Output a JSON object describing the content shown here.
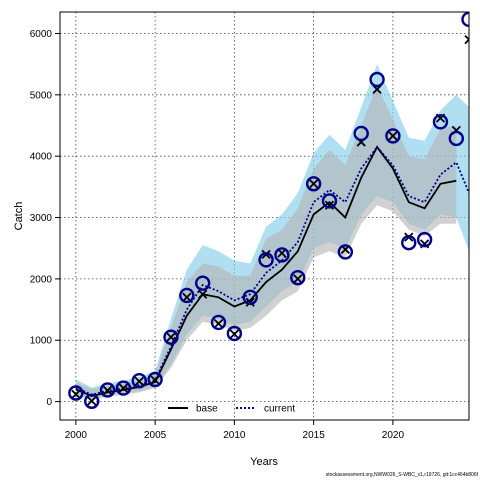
{
  "chart_data": {
    "type": "line",
    "title": "",
    "xlabel": "Years",
    "ylabel": "Catch",
    "xlim": [
      1999,
      2024.8
    ],
    "ylim": [
      -300,
      6350
    ],
    "xticks": [
      2000,
      2005,
      2010,
      2015,
      2020
    ],
    "yticks": [
      0,
      1000,
      2000,
      3000,
      4000,
      5000,
      6000
    ],
    "grid": true,
    "legend_position": "bottom-center",
    "series": [
      {
        "name": "base",
        "color": "#000000",
        "line_style": "solid",
        "band_color": "#b3b3b3",
        "x": [
          2000,
          2001,
          2002,
          2003,
          2004,
          2005,
          2006,
          2007,
          2008,
          2009,
          2010,
          2011,
          2012,
          2013,
          2014,
          2015,
          2016,
          2017,
          2018,
          2019,
          2020,
          2021,
          2022,
          2023,
          2024
        ],
        "values": [
          200,
          90,
          150,
          190,
          240,
          320,
          850,
          1400,
          1750,
          1700,
          1550,
          1650,
          1950,
          2150,
          2450,
          3050,
          3250,
          3000,
          3650,
          4150,
          3800,
          3250,
          3150,
          3550,
          3600
        ],
        "lower": [
          100,
          30,
          80,
          110,
          150,
          220,
          550,
          1000,
          1300,
          1250,
          1150,
          1200,
          1400,
          1650,
          1800,
          2350,
          2450,
          2350,
          2900,
          3200,
          3100,
          2800,
          2700,
          2900,
          2900
        ],
        "upper": [
          320,
          200,
          260,
          300,
          360,
          450,
          1200,
          1950,
          2250,
          2200,
          2050,
          2050,
          2650,
          2800,
          3150,
          3800,
          4100,
          3850,
          4500,
          5150,
          4600,
          4000,
          3950,
          4450,
          4500
        ],
        "points": {
          "x": [
            2000,
            2001,
            2002,
            2003,
            2004,
            2005,
            2006,
            2007,
            2008,
            2009,
            2010,
            2011,
            2012,
            2013,
            2014,
            2015,
            2016,
            2017,
            2018,
            2019,
            2020,
            2021,
            2022,
            2023,
            2024,
            2024.8
          ],
          "values": [
            120,
            10,
            180,
            220,
            330,
            350,
            1050,
            1700,
            1750,
            1270,
            1100,
            1620,
            2400,
            2420,
            2000,
            3550,
            3200,
            2480,
            4230,
            5090,
            4330,
            2680,
            2570,
            4620,
            4420,
            5900
          ]
        }
      },
      {
        "name": "current",
        "color": "#00008b",
        "line_style": "dotted",
        "band_color": "#87ceeb",
        "x": [
          2000,
          2001,
          2002,
          2003,
          2004,
          2005,
          2006,
          2007,
          2008,
          2009,
          2010,
          2011,
          2012,
          2013,
          2014,
          2015,
          2016,
          2017,
          2018,
          2019,
          2020,
          2021,
          2022,
          2023,
          2024,
          2024.8
        ],
        "values": [
          230,
          110,
          180,
          220,
          270,
          350,
          900,
          1500,
          1900,
          1800,
          1650,
          1750,
          2100,
          2300,
          2600,
          3250,
          3450,
          3250,
          3800,
          4150,
          3850,
          3350,
          3250,
          3700,
          3900,
          3400
        ],
        "lower": [
          130,
          40,
          100,
          140,
          180,
          250,
          600,
          1100,
          1400,
          1350,
          1250,
          1300,
          1550,
          1800,
          1950,
          2500,
          2600,
          2500,
          3050,
          3350,
          3250,
          2900,
          2800,
          3050,
          3000,
          2450
        ],
        "upper": [
          360,
          230,
          300,
          340,
          400,
          500,
          1350,
          2150,
          2550,
          2450,
          2300,
          2250,
          2850,
          3050,
          3400,
          4050,
          4350,
          4100,
          4800,
          5500,
          4900,
          4300,
          4250,
          4750,
          5000,
          4800
        ],
        "points": {
          "x": [
            2000,
            2001,
            2002,
            2003,
            2004,
            2005,
            2006,
            2007,
            2008,
            2009,
            2010,
            2011,
            2012,
            2013,
            2014,
            2015,
            2016,
            2017,
            2018,
            2019,
            2020,
            2021,
            2022,
            2023,
            2024,
            2024.8
          ],
          "values": [
            140,
            5,
            190,
            220,
            340,
            360,
            1050,
            1730,
            1930,
            1290,
            1110,
            1700,
            2310,
            2390,
            2020,
            3550,
            3270,
            2440,
            4370,
            5250,
            4330,
            2590,
            2640,
            4560,
            4290,
            6230
          ]
        }
      }
    ]
  },
  "footer_text": "stockassessment.org,NWW026_S-WBC_v1,r19726, git:1cc464b806f"
}
